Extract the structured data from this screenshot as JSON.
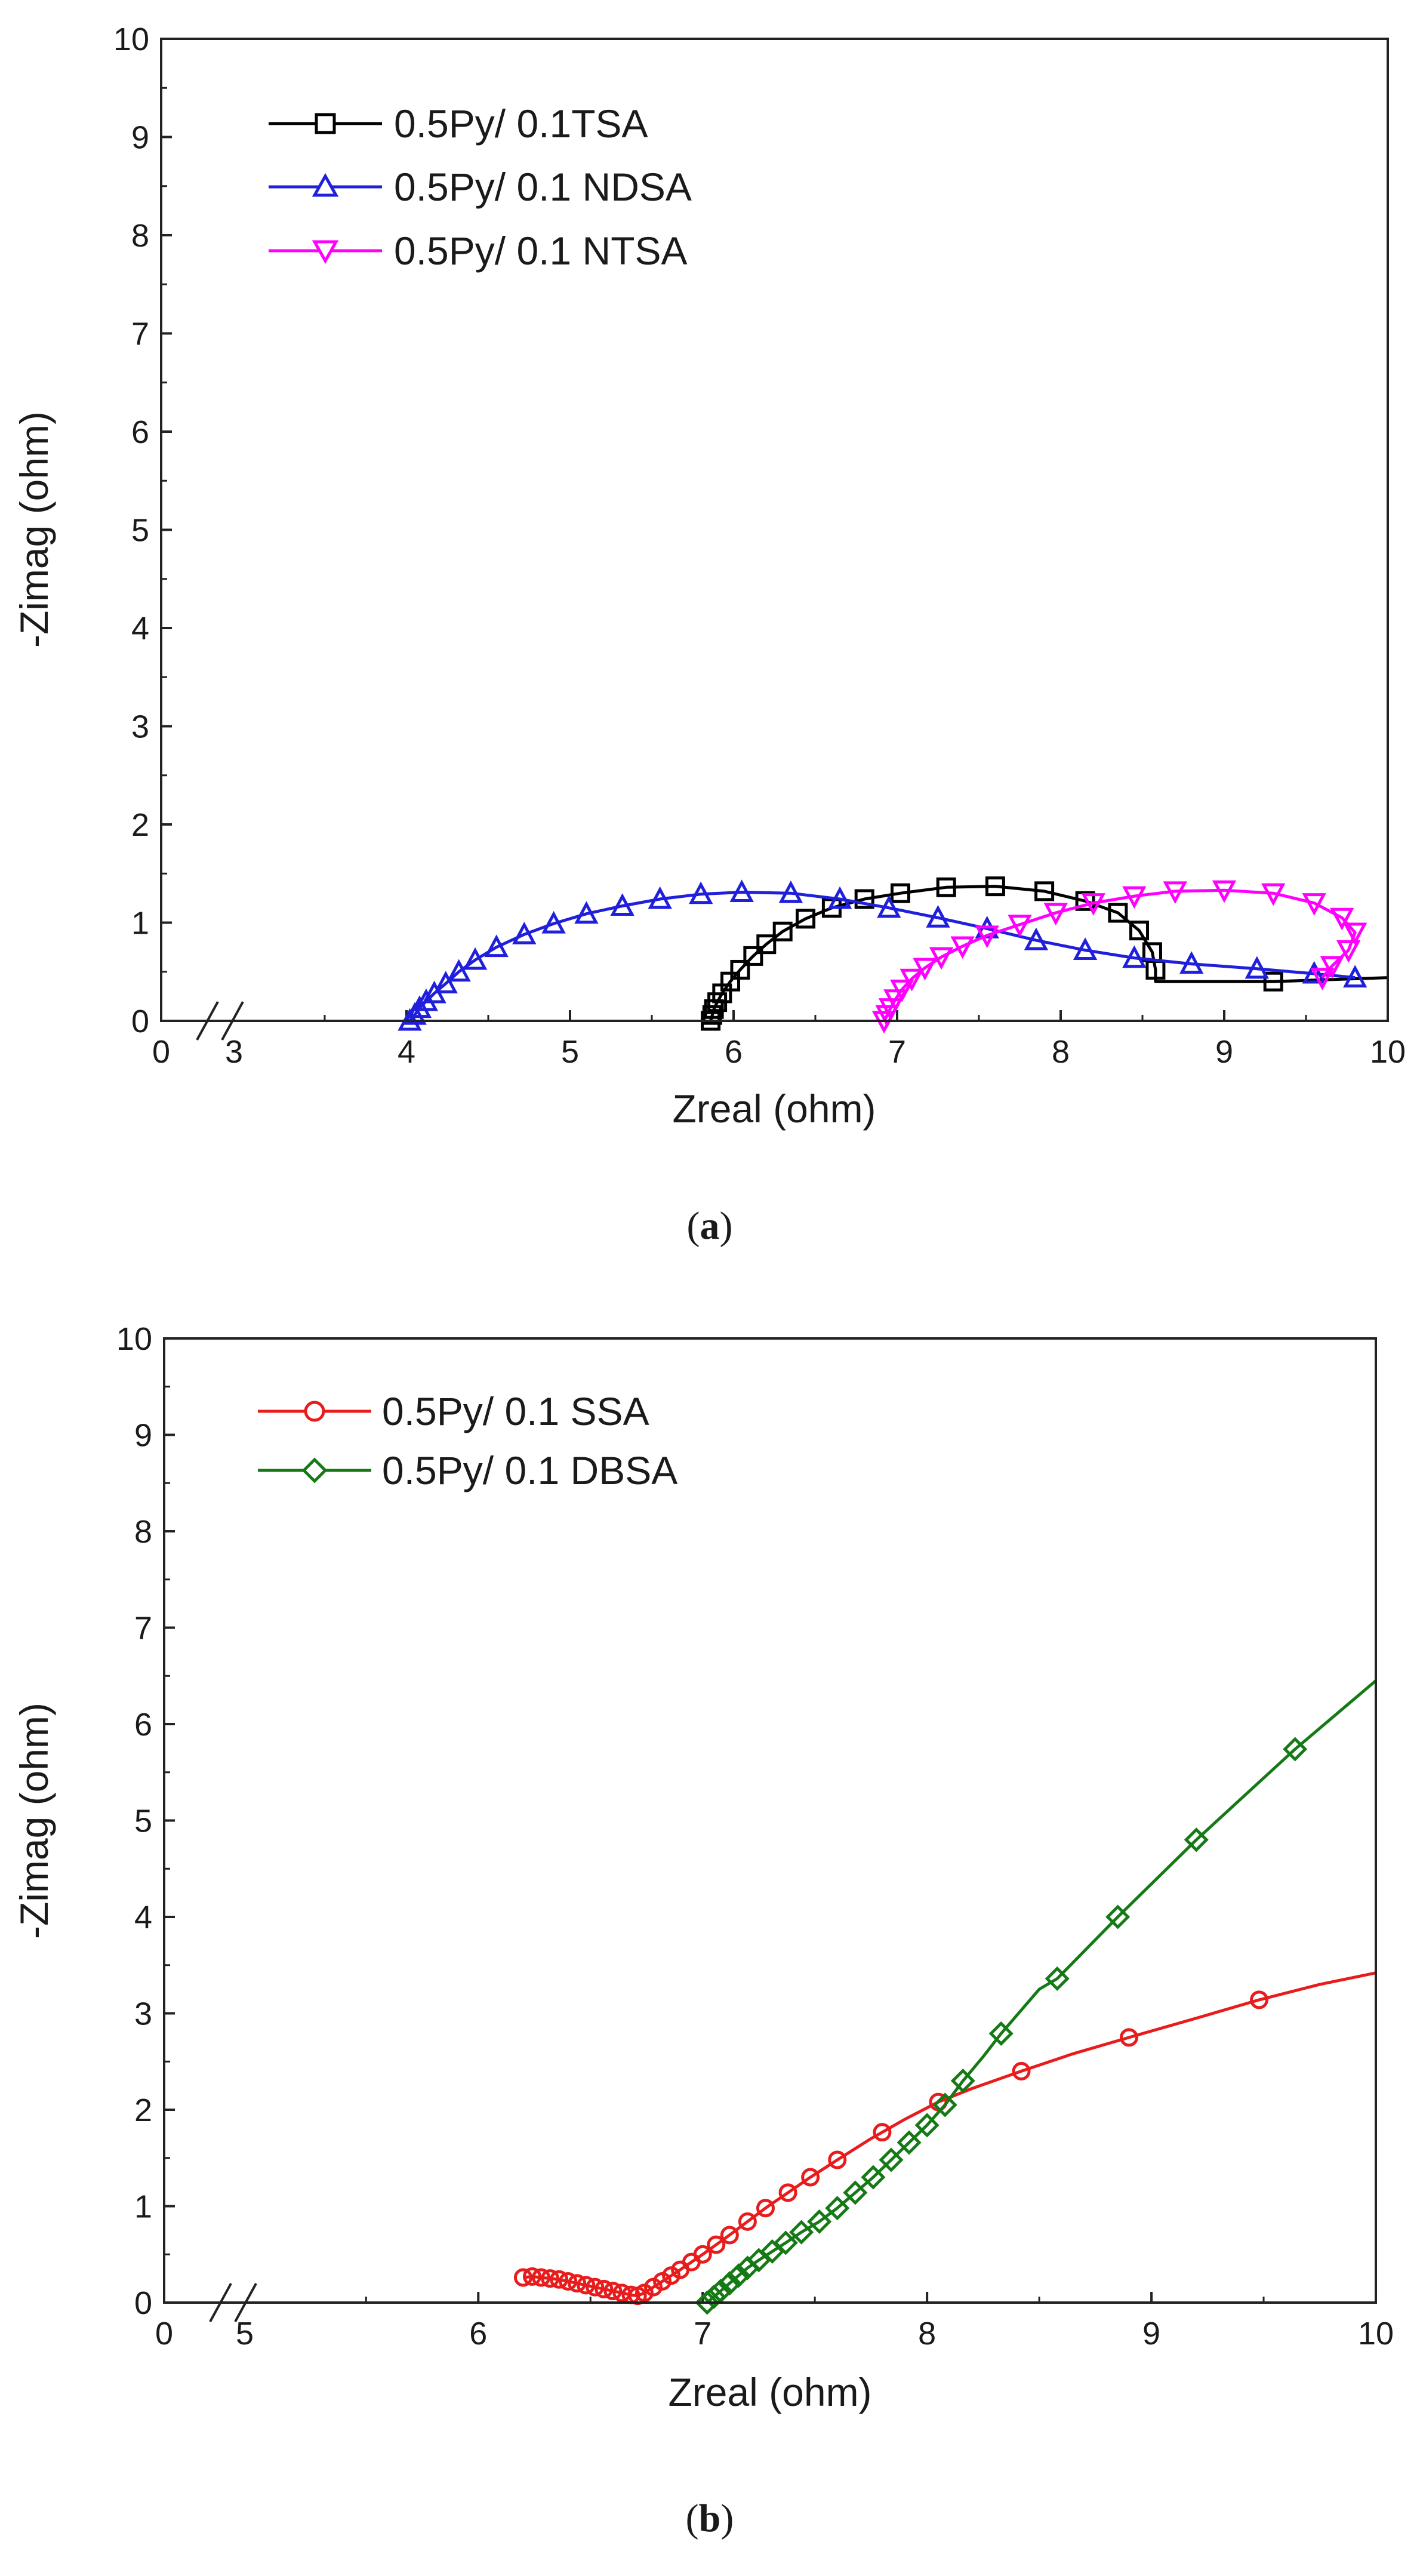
{
  "chart_data": [
    {
      "type": "line",
      "id": "a",
      "caption": "a",
      "xlabel": "Zreal (ohm)",
      "ylabel": "-Zimag (ohm)",
      "xlim": [
        2.5,
        10
      ],
      "ylim": [
        0,
        10
      ],
      "x_break": {
        "display_start": "0",
        "display_after_break": "3"
      },
      "x_ticks": [
        4,
        5,
        6,
        7,
        8,
        9,
        10
      ],
      "y_ticks": [
        0,
        1,
        2,
        3,
        4,
        5,
        6,
        7,
        8,
        9,
        10
      ],
      "grid": false,
      "legend_position": "top-left",
      "series": [
        {
          "name": "0.5Py/ 0.1TSA",
          "color": "#000000",
          "marker": "square",
          "points": [
            [
              5.86,
              0.0
            ],
            [
              5.87,
              0.06
            ],
            [
              5.88,
              0.12
            ],
            [
              5.9,
              0.19
            ],
            [
              5.93,
              0.28
            ],
            [
              5.98,
              0.4
            ],
            [
              6.04,
              0.52
            ],
            [
              6.12,
              0.66
            ],
            [
              6.2,
              0.78
            ],
            [
              6.3,
              0.91
            ],
            [
              6.44,
              1.04
            ],
            [
              6.6,
              1.15
            ],
            [
              6.8,
              1.24
            ],
            [
              7.02,
              1.3
            ],
            [
              7.3,
              1.36
            ],
            [
              7.6,
              1.37
            ],
            [
              7.9,
              1.32
            ],
            [
              8.15,
              1.22
            ],
            [
              8.35,
              1.1
            ],
            [
              8.48,
              0.92
            ],
            [
              8.56,
              0.7
            ],
            [
              8.58,
              0.52
            ],
            [
              8.58,
              0.4
            ],
            [
              9.3,
              0.4
            ],
            [
              10.0,
              0.44
            ]
          ],
          "marker_x": [
            5.86,
            5.87,
            5.88,
            5.9,
            5.93,
            5.98,
            6.04,
            6.12,
            6.2,
            6.3,
            6.44,
            6.6,
            6.8,
            7.02,
            7.3,
            7.6,
            7.9,
            8.15,
            8.35,
            8.48,
            8.56,
            8.58,
            9.3
          ]
        },
        {
          "name": "0.5Py/ 0.1 NDSA",
          "color": "#1f1fdc",
          "marker": "triangle-up",
          "points": [
            [
              4.02,
              0.0
            ],
            [
              4.05,
              0.06
            ],
            [
              4.08,
              0.13
            ],
            [
              4.12,
              0.2
            ],
            [
              4.17,
              0.28
            ],
            [
              4.24,
              0.38
            ],
            [
              4.32,
              0.5
            ],
            [
              4.42,
              0.62
            ],
            [
              4.55,
              0.75
            ],
            [
              4.72,
              0.88
            ],
            [
              4.9,
              0.99
            ],
            [
              5.1,
              1.09
            ],
            [
              5.32,
              1.17
            ],
            [
              5.55,
              1.24
            ],
            [
              5.8,
              1.29
            ],
            [
              6.05,
              1.31
            ],
            [
              6.35,
              1.3
            ],
            [
              6.65,
              1.24
            ],
            [
              6.95,
              1.15
            ],
            [
              7.25,
              1.05
            ],
            [
              7.55,
              0.94
            ],
            [
              7.85,
              0.82
            ],
            [
              8.15,
              0.72
            ],
            [
              8.45,
              0.64
            ],
            [
              8.8,
              0.58
            ],
            [
              9.2,
              0.53
            ],
            [
              9.55,
              0.48
            ],
            [
              9.8,
              0.44
            ]
          ],
          "marker_x": [
            4.02,
            4.05,
            4.08,
            4.12,
            4.17,
            4.24,
            4.32,
            4.42,
            4.55,
            4.72,
            4.9,
            5.1,
            5.32,
            5.55,
            5.8,
            6.05,
            6.35,
            6.65,
            6.95,
            7.25,
            7.55,
            7.85,
            8.15,
            8.45,
            8.8,
            9.2,
            9.55,
            9.8
          ]
        },
        {
          "name": "0.5Py/ 0.1 NTSA",
          "color": "#ff00ff",
          "marker": "triangle-down",
          "points": [
            [
              6.92,
              0.0
            ],
            [
              6.94,
              0.06
            ],
            [
              6.96,
              0.13
            ],
            [
              6.99,
              0.22
            ],
            [
              7.03,
              0.32
            ],
            [
              7.09,
              0.43
            ],
            [
              7.17,
              0.54
            ],
            [
              7.27,
              0.65
            ],
            [
              7.4,
              0.76
            ],
            [
              7.55,
              0.87
            ],
            [
              7.75,
              0.98
            ],
            [
              7.97,
              1.1
            ],
            [
              8.2,
              1.2
            ],
            [
              8.45,
              1.27
            ],
            [
              8.7,
              1.32
            ],
            [
              9.0,
              1.33
            ],
            [
              9.3,
              1.3
            ],
            [
              9.55,
              1.2
            ],
            [
              9.72,
              1.05
            ],
            [
              9.8,
              0.9
            ],
            [
              9.76,
              0.72
            ],
            [
              9.66,
              0.56
            ],
            [
              9.6,
              0.44
            ]
          ],
          "marker_x": [
            6.92,
            6.94,
            6.96,
            6.99,
            7.03,
            7.09,
            7.17,
            7.27,
            7.4,
            7.55,
            7.75,
            7.97,
            8.2,
            8.45,
            8.7,
            9.0,
            9.3,
            9.55,
            9.72,
            9.8,
            9.76,
            9.66,
            9.6
          ]
        }
      ]
    },
    {
      "type": "line",
      "id": "b",
      "caption": "b",
      "xlabel": "Zreal (ohm)",
      "ylabel": "-Zimag (ohm)",
      "xlim": [
        4.6,
        10
      ],
      "ylim": [
        0,
        10
      ],
      "x_break": {
        "display_start": "0",
        "display_after_break": "5"
      },
      "x_ticks": [
        6,
        7,
        8,
        9,
        10
      ],
      "y_ticks": [
        0,
        1,
        2,
        3,
        4,
        5,
        6,
        7,
        8,
        9,
        10
      ],
      "grid": false,
      "legend_position": "top-left",
      "series": [
        {
          "name": "0.5Py/ 0.1 SSA",
          "color": "#e81c1c",
          "marker": "circle",
          "points": [
            [
              6.2,
              0.26
            ],
            [
              6.24,
              0.27
            ],
            [
              6.28,
              0.26
            ],
            [
              6.32,
              0.25
            ],
            [
              6.36,
              0.24
            ],
            [
              6.4,
              0.22
            ],
            [
              6.44,
              0.2
            ],
            [
              6.48,
              0.18
            ],
            [
              6.52,
              0.16
            ],
            [
              6.56,
              0.14
            ],
            [
              6.6,
              0.12
            ],
            [
              6.64,
              0.1
            ],
            [
              6.68,
              0.08
            ],
            [
              6.71,
              0.07
            ],
            [
              6.74,
              0.1
            ],
            [
              6.78,
              0.16
            ],
            [
              6.82,
              0.22
            ],
            [
              6.86,
              0.28
            ],
            [
              6.9,
              0.34
            ],
            [
              6.95,
              0.42
            ],
            [
              7.0,
              0.5
            ],
            [
              7.06,
              0.6
            ],
            [
              7.12,
              0.7
            ],
            [
              7.2,
              0.84
            ],
            [
              7.28,
              0.98
            ],
            [
              7.38,
              1.14
            ],
            [
              7.48,
              1.3
            ],
            [
              7.6,
              1.48
            ],
            [
              7.75,
              1.7
            ],
            [
              7.9,
              1.9
            ],
            [
              8.05,
              2.08
            ],
            [
              8.2,
              2.22
            ],
            [
              8.42,
              2.4
            ],
            [
              8.65,
              2.58
            ],
            [
              8.9,
              2.75
            ],
            [
              9.2,
              2.95
            ],
            [
              9.48,
              3.14
            ],
            [
              9.75,
              3.3
            ],
            [
              10.0,
              3.42
            ]
          ],
          "marker_x": [
            6.2,
            6.24,
            6.28,
            6.32,
            6.36,
            6.4,
            6.44,
            6.48,
            6.52,
            6.56,
            6.6,
            6.64,
            6.68,
            6.71,
            6.74,
            6.78,
            6.82,
            6.86,
            6.9,
            6.95,
            7.0,
            7.06,
            7.12,
            7.2,
            7.28,
            7.38,
            7.48,
            7.6,
            7.8,
            8.05,
            8.42,
            8.9,
            9.48
          ]
        },
        {
          "name": "0.5Py/ 0.1 DBSA",
          "color": "#157a15",
          "marker": "diamond",
          "points": [
            [
              7.02,
              0.0
            ],
            [
              7.05,
              0.06
            ],
            [
              7.08,
              0.12
            ],
            [
              7.12,
              0.2
            ],
            [
              7.16,
              0.28
            ],
            [
              7.2,
              0.36
            ],
            [
              7.25,
              0.44
            ],
            [
              7.31,
              0.53
            ],
            [
              7.37,
              0.62
            ],
            [
              7.44,
              0.73
            ],
            [
              7.52,
              0.84
            ],
            [
              7.6,
              0.98
            ],
            [
              7.68,
              1.14
            ],
            [
              7.76,
              1.3
            ],
            [
              7.84,
              1.48
            ],
            [
              7.92,
              1.66
            ],
            [
              8.0,
              1.84
            ],
            [
              8.08,
              2.05
            ],
            [
              8.16,
              2.3
            ],
            [
              8.25,
              2.55
            ],
            [
              8.33,
              2.79
            ],
            [
              8.5,
              3.25
            ],
            [
              8.58,
              3.36
            ],
            [
              8.85,
              4.0
            ],
            [
              9.2,
              4.8
            ],
            [
              9.64,
              5.74
            ],
            [
              10.0,
              6.45
            ]
          ],
          "marker_x": [
            7.02,
            7.05,
            7.08,
            7.12,
            7.16,
            7.2,
            7.25,
            7.31,
            7.37,
            7.44,
            7.52,
            7.6,
            7.68,
            7.76,
            7.84,
            7.92,
            8.0,
            8.08,
            8.16,
            8.33,
            8.58,
            8.85,
            9.2,
            9.64
          ]
        }
      ]
    }
  ]
}
